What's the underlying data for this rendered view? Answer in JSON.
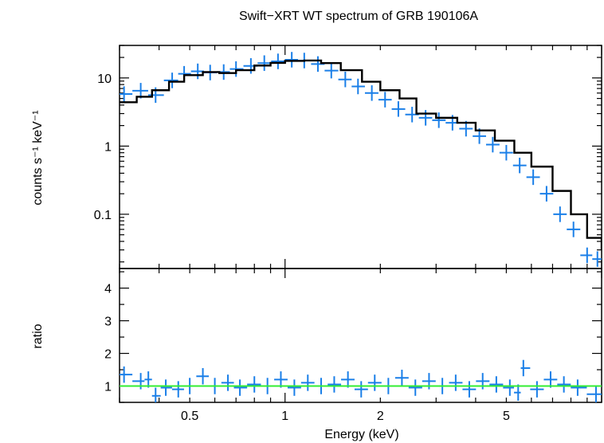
{
  "chart_data": [
    {
      "type": "scatter",
      "title": "Swift−XRT WT spectrum of GRB 190106A",
      "xlabel": "",
      "ylabel": "counts s⁻¹ keV⁻¹",
      "xscale": "log",
      "yscale": "log",
      "xlim": [
        0.3,
        10.0
      ],
      "ylim": [
        0.016,
        30
      ],
      "x_ticks": [],
      "y_ticks": [
        {
          "value": 0.1,
          "label": "0.1"
        },
        {
          "value": 1,
          "label": "1"
        },
        {
          "value": 10,
          "label": "10"
        }
      ],
      "series": [
        {
          "kind": "data-with-errors",
          "color": "#1a7fe8",
          "x": [
            0.31,
            0.35,
            0.39,
            0.44,
            0.48,
            0.53,
            0.58,
            0.64,
            0.7,
            0.78,
            0.86,
            0.95,
            1.05,
            1.15,
            1.27,
            1.4,
            1.55,
            1.7,
            1.88,
            2.07,
            2.28,
            2.52,
            2.78,
            3.06,
            3.38,
            3.73,
            4.11,
            4.53,
            5.0,
            5.51,
            6.08,
            6.7,
            7.39,
            8.15,
            9.0,
            9.7
          ],
          "y": [
            5.8,
            6.5,
            5.6,
            9.2,
            11.5,
            12.5,
            12.0,
            12.2,
            13.5,
            15.0,
            16.5,
            17.5,
            18.5,
            18.0,
            16.0,
            12.8,
            9.5,
            7.5,
            6.0,
            4.8,
            3.5,
            2.9,
            2.6,
            2.4,
            2.2,
            1.8,
            1.4,
            1.05,
            0.8,
            0.52,
            0.35,
            0.2,
            0.1,
            0.06,
            0.025,
            0.022
          ]
        },
        {
          "kind": "model",
          "color": "#000000",
          "x": [
            0.3,
            0.34,
            0.38,
            0.43,
            0.48,
            0.55,
            0.62,
            0.7,
            0.8,
            0.9,
            1.0,
            1.15,
            1.3,
            1.5,
            1.75,
            2.0,
            2.3,
            2.6,
            3.0,
            3.5,
            4.0,
            4.6,
            5.3,
            6.0,
            7.0,
            8.0,
            9.0,
            10.0
          ],
          "y": [
            4.4,
            5.3,
            6.6,
            8.8,
            11.0,
            12.2,
            11.8,
            13.0,
            15.2,
            16.6,
            17.8,
            18.0,
            16.5,
            13.0,
            8.8,
            6.6,
            5.0,
            3.0,
            2.6,
            2.2,
            1.7,
            1.2,
            0.8,
            0.5,
            0.22,
            0.1,
            0.045,
            0.03
          ]
        }
      ]
    },
    {
      "type": "scatter",
      "title": "",
      "xlabel": "Energy (keV)",
      "ylabel": "ratio",
      "xscale": "log",
      "yscale": "linear",
      "xlim": [
        0.3,
        10.0
      ],
      "ylim": [
        0.5,
        4.6
      ],
      "x_ticks": [
        {
          "value": 0.5,
          "label": "0.5"
        },
        {
          "value": 1,
          "label": "1"
        },
        {
          "value": 2,
          "label": "2"
        },
        {
          "value": 5,
          "label": "5"
        }
      ],
      "y_ticks": [
        {
          "value": 1,
          "label": "1"
        },
        {
          "value": 2,
          "label": "2"
        },
        {
          "value": 3,
          "label": "3"
        },
        {
          "value": 4,
          "label": "4"
        }
      ],
      "reference_line": {
        "y": 1,
        "color": "#33ee33"
      },
      "series": [
        {
          "kind": "data-with-errors",
          "color": "#1a7fe8",
          "x": [
            0.31,
            0.35,
            0.37,
            0.39,
            0.42,
            0.46,
            0.5,
            0.55,
            0.6,
            0.66,
            0.72,
            0.8,
            0.88,
            0.97,
            1.07,
            1.18,
            1.3,
            1.43,
            1.58,
            1.74,
            1.92,
            2.12,
            2.34,
            2.58,
            2.85,
            3.14,
            3.46,
            3.82,
            4.21,
            4.65,
            5.13,
            5.45,
            5.66,
            6.25,
            6.9,
            7.6,
            8.4,
            9.6
          ],
          "y": [
            1.35,
            1.15,
            1.2,
            0.7,
            0.95,
            0.9,
            1.0,
            1.3,
            1.0,
            1.1,
            0.95,
            1.05,
            1.0,
            1.2,
            0.95,
            1.1,
            1.0,
            1.05,
            1.2,
            0.9,
            1.1,
            1.0,
            1.25,
            0.95,
            1.15,
            1.0,
            1.1,
            0.9,
            1.15,
            1.05,
            0.95,
            0.8,
            1.55,
            0.9,
            1.2,
            1.05,
            0.95,
            0.75
          ]
        }
      ]
    }
  ]
}
